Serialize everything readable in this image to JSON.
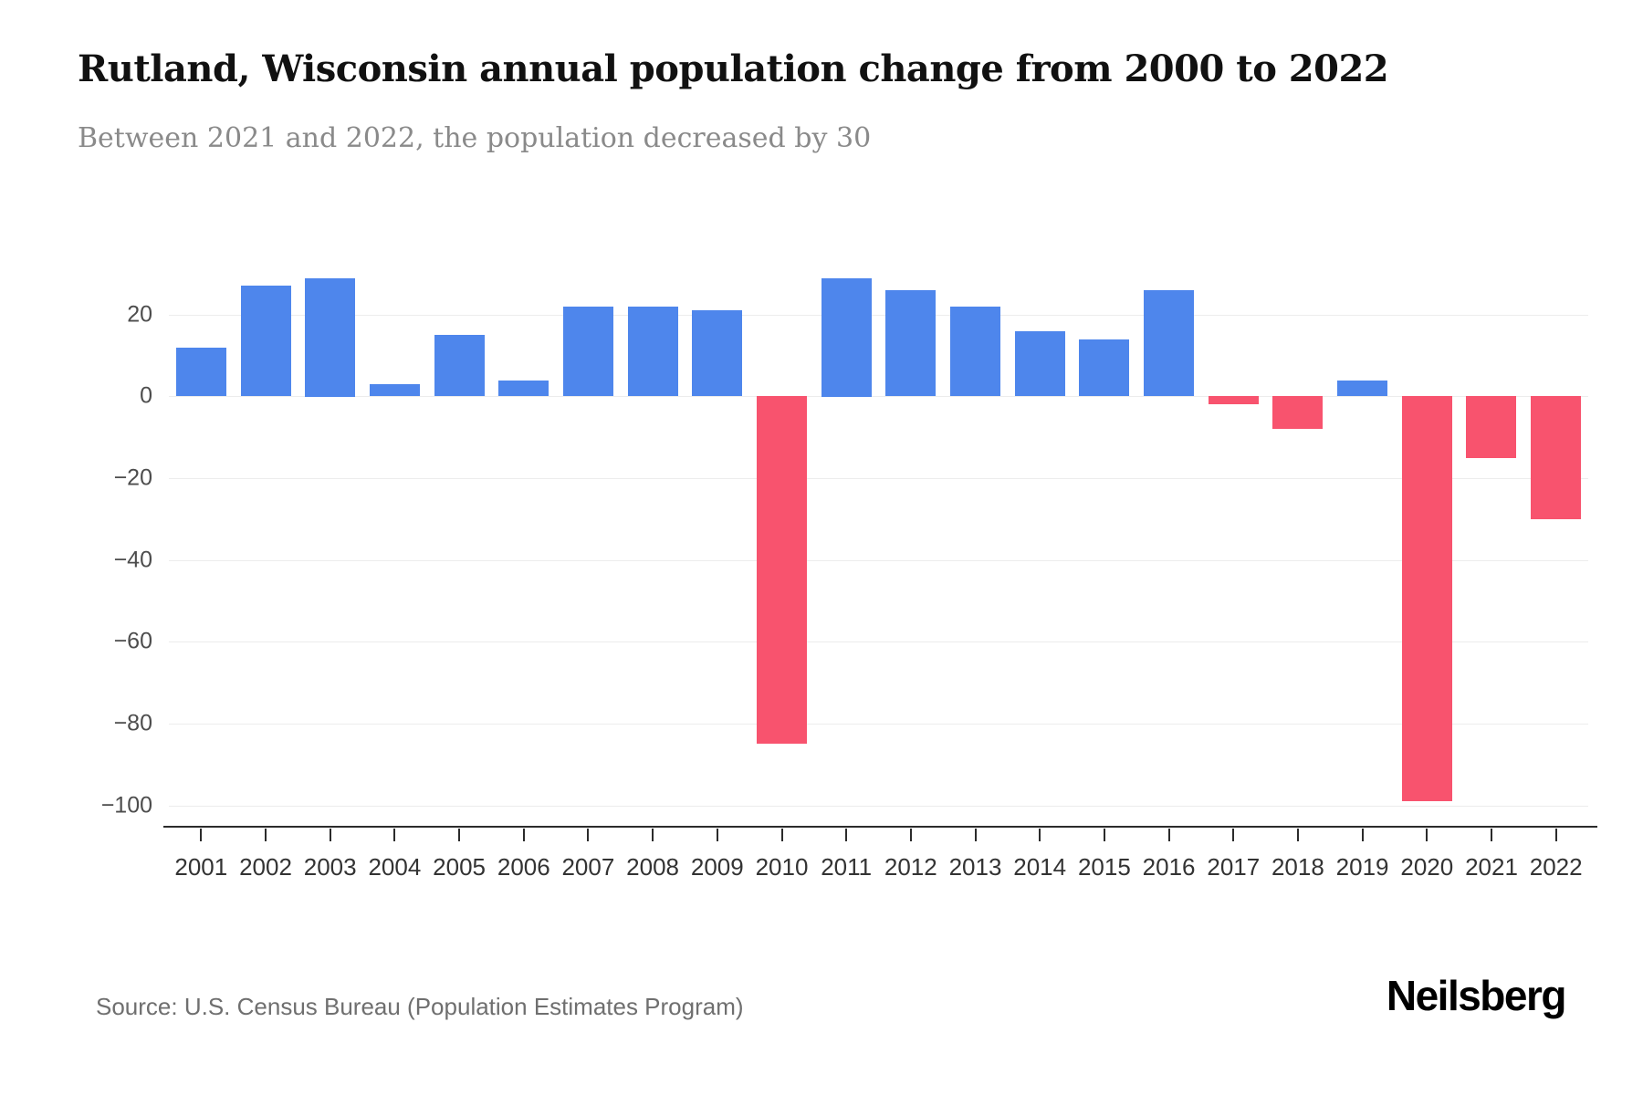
{
  "header": {
    "title": "Rutland, Wisconsin annual population change from 2000 to 2022",
    "subtitle": "Between 2021 and 2022, the population decreased by 30"
  },
  "chart_data": {
    "type": "bar",
    "title": "Rutland, Wisconsin annual population change from 2000 to 2022",
    "xlabel": "",
    "ylabel": "",
    "categories": [
      "2001",
      "2002",
      "2003",
      "2004",
      "2005",
      "2006",
      "2007",
      "2008",
      "2009",
      "2010",
      "2011",
      "2012",
      "2013",
      "2014",
      "2015",
      "2016",
      "2017",
      "2018",
      "2019",
      "2020",
      "2021",
      "2022"
    ],
    "values": [
      12,
      27,
      29,
      3,
      15,
      4,
      22,
      22,
      21,
      -85,
      29,
      26,
      22,
      16,
      14,
      26,
      -2,
      -8,
      4,
      -99,
      -15,
      -30
    ],
    "ylim": [
      -105,
      30
    ],
    "yticks": [
      20,
      0,
      -20,
      -40,
      -60,
      -80,
      -100
    ],
    "grid": true,
    "legend": "none",
    "positive_color": "#4e86ec",
    "negative_color": "#f8536e"
  },
  "footer": {
    "source": "Source: U.S. Census Bureau (Population Estimates Program)",
    "brand": "Neilsberg"
  }
}
